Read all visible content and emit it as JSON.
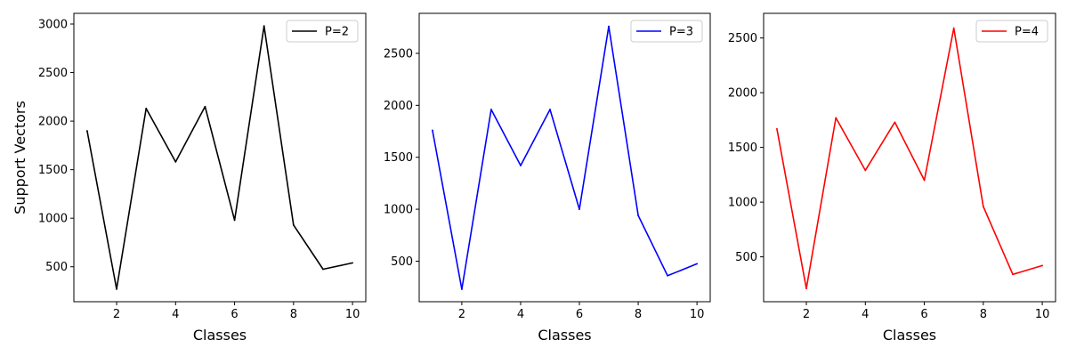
{
  "chart_data": [
    {
      "type": "line",
      "xlabel": "Classes",
      "ylabel": "Support Vectors",
      "xlim": [
        0.55,
        10.45
      ],
      "ylim": [
        140,
        3110
      ],
      "xticks": [
        2,
        4,
        6,
        8,
        10
      ],
      "yticks": [
        500,
        1000,
        1500,
        2000,
        2500,
        3000
      ],
      "grid": false,
      "legend_position": "top-right",
      "series": [
        {
          "name": "P=2",
          "color": "#000000",
          "x": [
            1,
            2,
            3,
            4,
            5,
            6,
            7,
            8,
            9,
            10
          ],
          "y": [
            1900,
            270,
            2130,
            1580,
            2150,
            980,
            2980,
            930,
            475,
            540
          ]
        }
      ]
    },
    {
      "type": "line",
      "xlabel": "Classes",
      "ylabel": "",
      "xlim": [
        0.55,
        10.45
      ],
      "ylim": [
        110,
        2885
      ],
      "xticks": [
        2,
        4,
        6,
        8,
        10
      ],
      "yticks": [
        500,
        1000,
        1500,
        2000,
        2500
      ],
      "grid": false,
      "legend_position": "top-right",
      "series": [
        {
          "name": "P=3",
          "color": "#0000ff",
          "x": [
            1,
            2,
            3,
            4,
            5,
            6,
            7,
            8,
            9,
            10
          ],
          "y": [
            1760,
            230,
            1960,
            1420,
            1960,
            1000,
            2760,
            940,
            360,
            475
          ]
        }
      ]
    },
    {
      "type": "line",
      "xlabel": "Classes",
      "ylabel": "",
      "xlim": [
        0.55,
        10.45
      ],
      "ylim": [
        90,
        2725
      ],
      "xticks": [
        2,
        4,
        6,
        8,
        10
      ],
      "yticks": [
        500,
        1000,
        1500,
        2000,
        2500
      ],
      "grid": false,
      "legend_position": "top-right",
      "series": [
        {
          "name": "P=4",
          "color": "#ff0000",
          "x": [
            1,
            2,
            3,
            4,
            5,
            6,
            7,
            8,
            9,
            10
          ],
          "y": [
            1670,
            210,
            1770,
            1290,
            1730,
            1200,
            2590,
            960,
            340,
            420
          ]
        }
      ]
    }
  ]
}
